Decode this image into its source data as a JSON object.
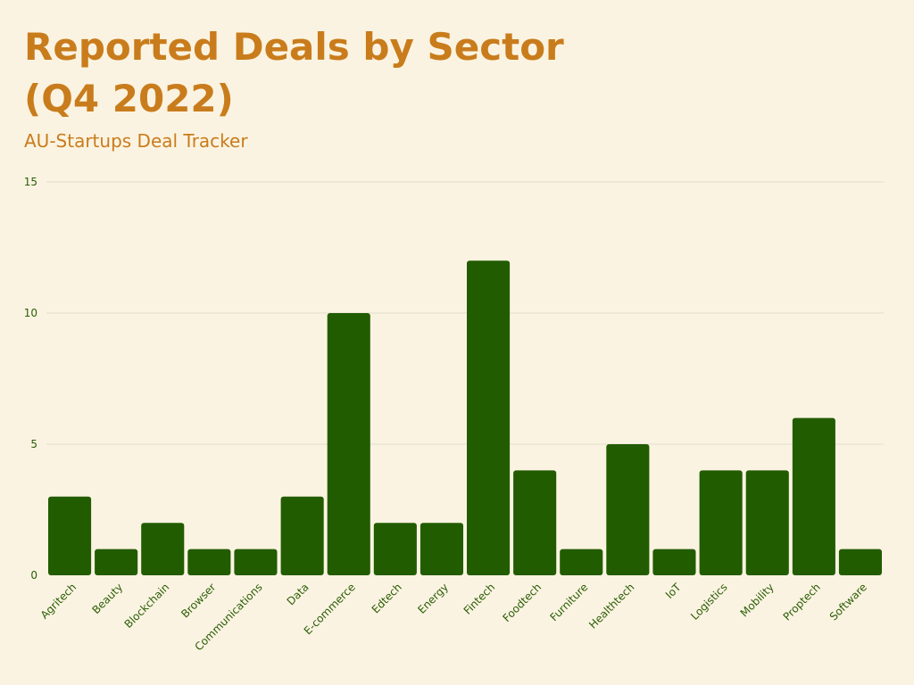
{
  "colors": {
    "background": "#fbf3e1",
    "title": "#c97c1c",
    "bar": "#225c00",
    "axis_text": "#2a5e06",
    "grid": "#e2dccb"
  },
  "chart_data": {
    "type": "bar",
    "title": "Reported Deals by Sector (Q4 2022)",
    "subtitle": "AU-Startups Deal Tracker",
    "xlabel": "",
    "ylabel": "",
    "ylim": [
      0,
      15
    ],
    "yticks": [
      0,
      5,
      10,
      15
    ],
    "grid": true,
    "legend": "none",
    "categories": [
      "Agritech",
      "Beauty",
      "Blockchain",
      "Browser",
      "Communications",
      "Data",
      "E-commerce",
      "Edtech",
      "Energy",
      "Fintech",
      "Foodtech",
      "Furniture",
      "Healthtech",
      "IoT",
      "Logistics",
      "Mobility",
      "Proptech",
      "Software"
    ],
    "values": [
      3,
      1,
      2,
      1,
      1,
      3,
      10,
      2,
      2,
      12,
      4,
      1,
      5,
      1,
      4,
      4,
      6,
      1
    ]
  }
}
